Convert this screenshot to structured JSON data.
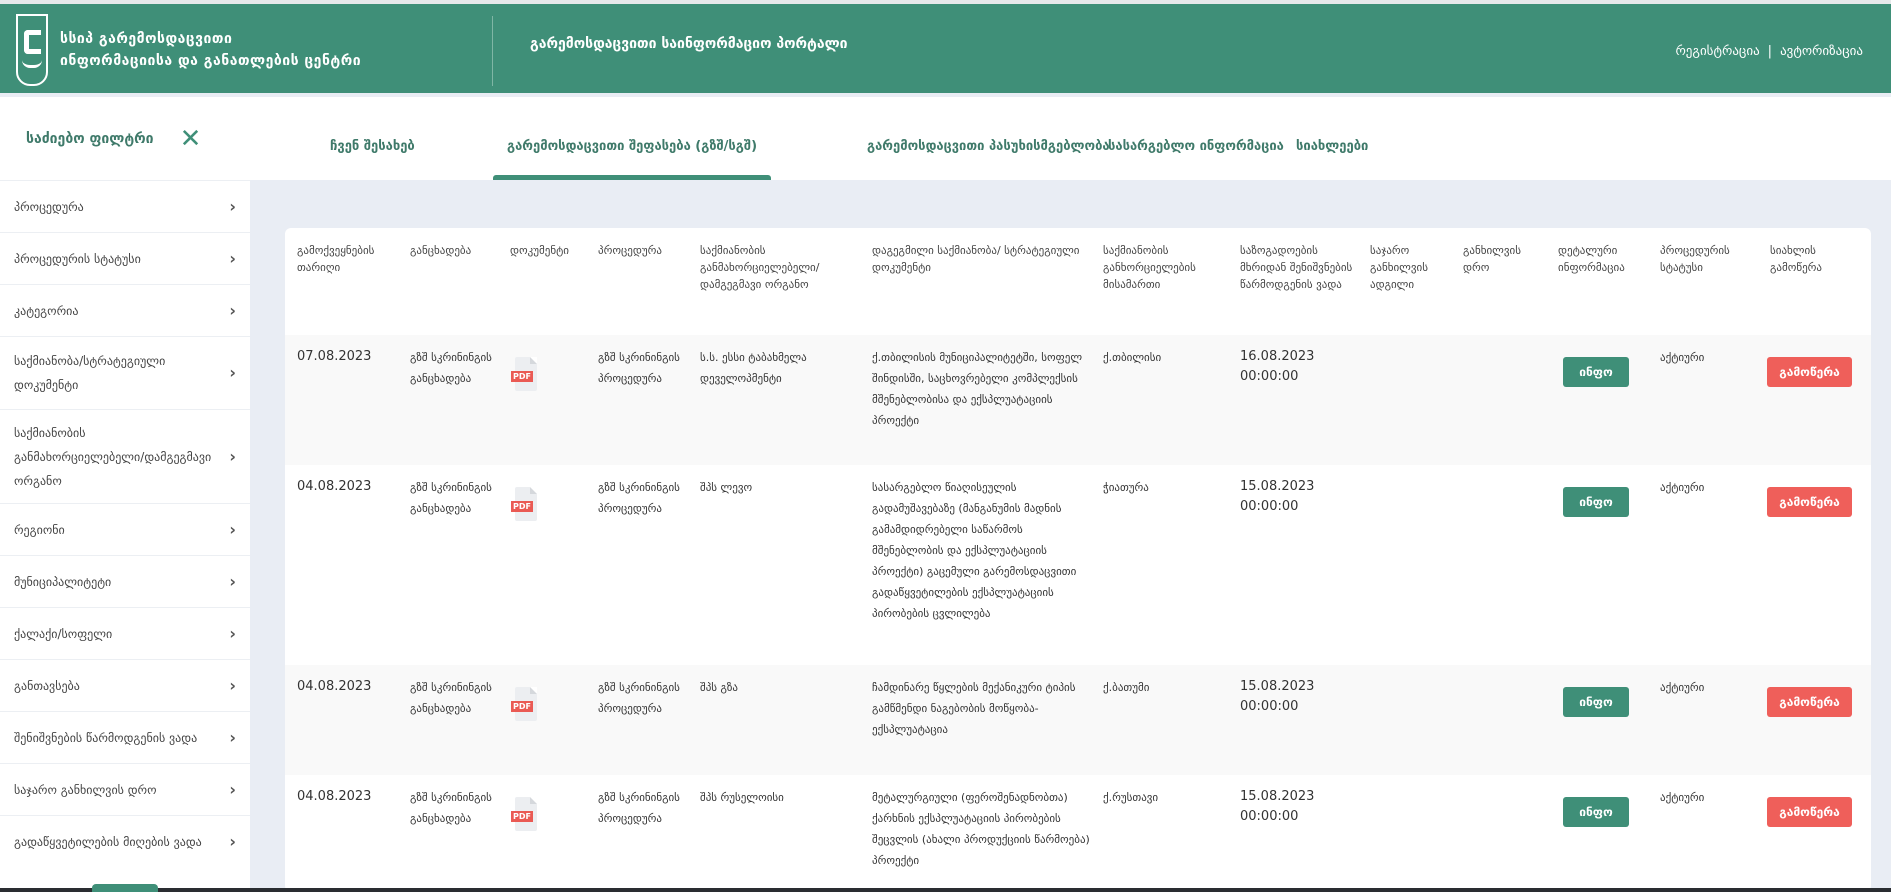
{
  "header": {
    "org_line1": "სსიპ გარემოსდაცვითი",
    "org_line2": "ინფორმაციისა და განათლების ცენტრი",
    "portal_title": "გარემოსდაცვითი საინფორმაციო პორტალი",
    "register": "რეგისტრაცია",
    "separator": "|",
    "login": "ავტორიზაცია"
  },
  "filter": {
    "title": "საძიებო ფილტრი",
    "close_icon": "close-icon",
    "items": [
      "პროცედურა",
      "პროცედურის სტატუსი",
      "კატეგორია",
      "საქმიანობა/სტრატეგიული დოკუმენტი",
      "საქმიანობის განმახორციელებელი/დამგეგმავი ორგანო",
      "რეგიონი",
      "მუნიციპალიტეტი",
      "ქალაქი/სოფელი",
      "განთავსება",
      "შენიშვნების წარმოდგენის ვადა",
      "საჯარო განხილვის დრო",
      "გადაწყვეტილების მიღების ვადა"
    ]
  },
  "tabs": [
    "ჩვენ შესახებ",
    "გარემოსდაცვითი შეფასება (გზშ/სგშ)",
    "გარემოსდაცვითი პასუხისმგებლობა",
    "სასარგებლო ინფორმაცია",
    "სიახლეები"
  ],
  "active_tab": 1,
  "table": {
    "headers": [
      "გამოქვეყნების თარიღი",
      "განცხადება",
      "დოკუმენტი",
      "პროცედურა",
      "საქმიანობის განმახორციელებელი/ დამგეგმავი ორგანო",
      "დაგეგმილი საქმიანობა/ სტრატეგიული დოკუმენტი",
      "საქმიანობის განხორციელების მისამართი",
      "საზოგადოების მხრიდან შენიშვნების წარმოდგენის ვადა",
      "საჯარო განხილვის ადგილი",
      "განხილვის დრო",
      "დეტალური ინფორმაცია",
      "პროცედურის სტატუსი",
      "სიახლის გამოწერა"
    ],
    "pdf_label": "PDF",
    "info_label": "ინფო",
    "subscribe_label": "გამოწერა",
    "rows": [
      {
        "date": "07.08.2023",
        "application": "გზშ სკრინინგის განცხადება",
        "procedure": "გზშ სკრინინგის პროცედურა",
        "organ": "ს.ს. ესსი ტაბახმელა დეველოპმენტი",
        "activity": "ქ.თბილისის მუნიციპალიტეტში, სოფელ შინდისში, საცხოვრებელი კომპლექსის მშენებლობისა და ექსპლუატაციის პროექტი",
        "address": "ქ.თბილისი",
        "deadline": "16.08.2023",
        "deadline_time": "00:00:00",
        "place": "",
        "time": "",
        "status": "აქტიური"
      },
      {
        "date": "04.08.2023",
        "application": "გზშ სკრინინგის განცხადება",
        "procedure": "გზშ სკრინინგის პროცედურა",
        "organ": "შპს ლევო",
        "activity": "სასარგებლო წიაღისეულის გადამუშავებაზე (მანგანუმის მადნის გამამდიდრებელი საწარმოს მშენებლობის და ექსპლუატაციის პროექტი) გაცემული გარემოსდაცვითი გადაწყვეტილების ექსპლუატაციის პირობების ცვლილება",
        "address": "ჭიათურა",
        "deadline": "15.08.2023",
        "deadline_time": "00:00:00",
        "place": "",
        "time": "",
        "status": "აქტიური"
      },
      {
        "date": "04.08.2023",
        "application": "გზშ სკრინინგის განცხადება",
        "procedure": "გზშ სკრინინგის პროცედურა",
        "organ": "შპს გზა",
        "activity": "ჩამდინარე წყლების მექანიკური ტიპის გამწმენდი ნაგებობის მოწყობა-ექსპლუატაცია",
        "address": "ქ.ბათუმი",
        "deadline": "15.08.2023",
        "deadline_time": "00:00:00",
        "place": "",
        "time": "",
        "status": "აქტიური"
      },
      {
        "date": "04.08.2023",
        "application": "გზშ სკრინინგის განცხადება",
        "procedure": "გზშ სკრინინგის პროცედურა",
        "organ": "შპს რუსელოისი",
        "activity": "მეტალურგიული (ფეროშენადნობთა) ქარხნის ექსპლუატაციის პირობების შეცვლის (ახალი პროდუქციის წარმოება) პროექტი",
        "address": "ქ.რუსთავი",
        "deadline": "15.08.2023",
        "deadline_time": "00:00:00",
        "place": "",
        "time": "",
        "status": "აქტიური"
      }
    ]
  },
  "colors": {
    "brand": "#3f8f78",
    "subscribe": "#ef5f5a",
    "pdf": "#ea5a54"
  }
}
